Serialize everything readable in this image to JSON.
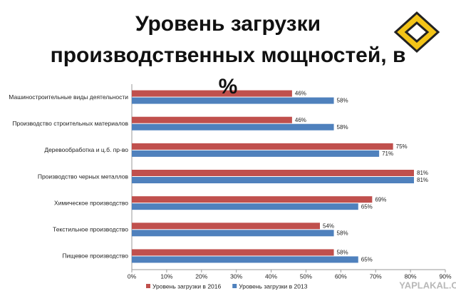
{
  "chart_data": {
    "type": "hbar",
    "title": "Уровень загрузки производственных мощностей, в %",
    "categories": [
      "Машиностроительные виды деятельности",
      "Производство строительных материалов",
      "Деревообработка и ц.б. пр-во",
      "Производство черных металлов",
      "Химическое производство",
      "Текстильное производство",
      "Пищевое производство"
    ],
    "series": [
      {
        "name": "Уровень загрузки в 2016",
        "color": "#c0504d",
        "values": [
          46,
          46,
          75,
          81,
          69,
          54,
          58
        ],
        "value_labels": [
          "46%",
          "46%",
          "75%",
          "81%",
          "69%",
          "54%",
          "58%"
        ]
      },
      {
        "name": "Уровень загрузки в 2013",
        "color": "#4f81bd",
        "values": [
          58,
          58,
          71,
          81,
          65,
          58,
          65
        ],
        "value_labels": [
          "58%",
          "58%",
          "71%",
          "81%",
          "65%",
          "58%",
          "65%"
        ]
      }
    ],
    "xlim": [
      0,
      90
    ],
    "xticks": [
      {
        "value": 0,
        "label": "0%"
      },
      {
        "value": 10,
        "label": "10%"
      },
      {
        "value": 20,
        "label": "20%"
      },
      {
        "value": 30,
        "label": "30%"
      },
      {
        "value": 40,
        "label": "40%"
      },
      {
        "value": 50,
        "label": "50%"
      },
      {
        "value": 60,
        "label": "60%"
      },
      {
        "value": 70,
        "label": "70%"
      },
      {
        "value": 80,
        "label": "80%"
      },
      {
        "value": 90,
        "label": "90%"
      }
    ],
    "legend": "bottom"
  },
  "watermark": "YAPLAKAL.COM"
}
